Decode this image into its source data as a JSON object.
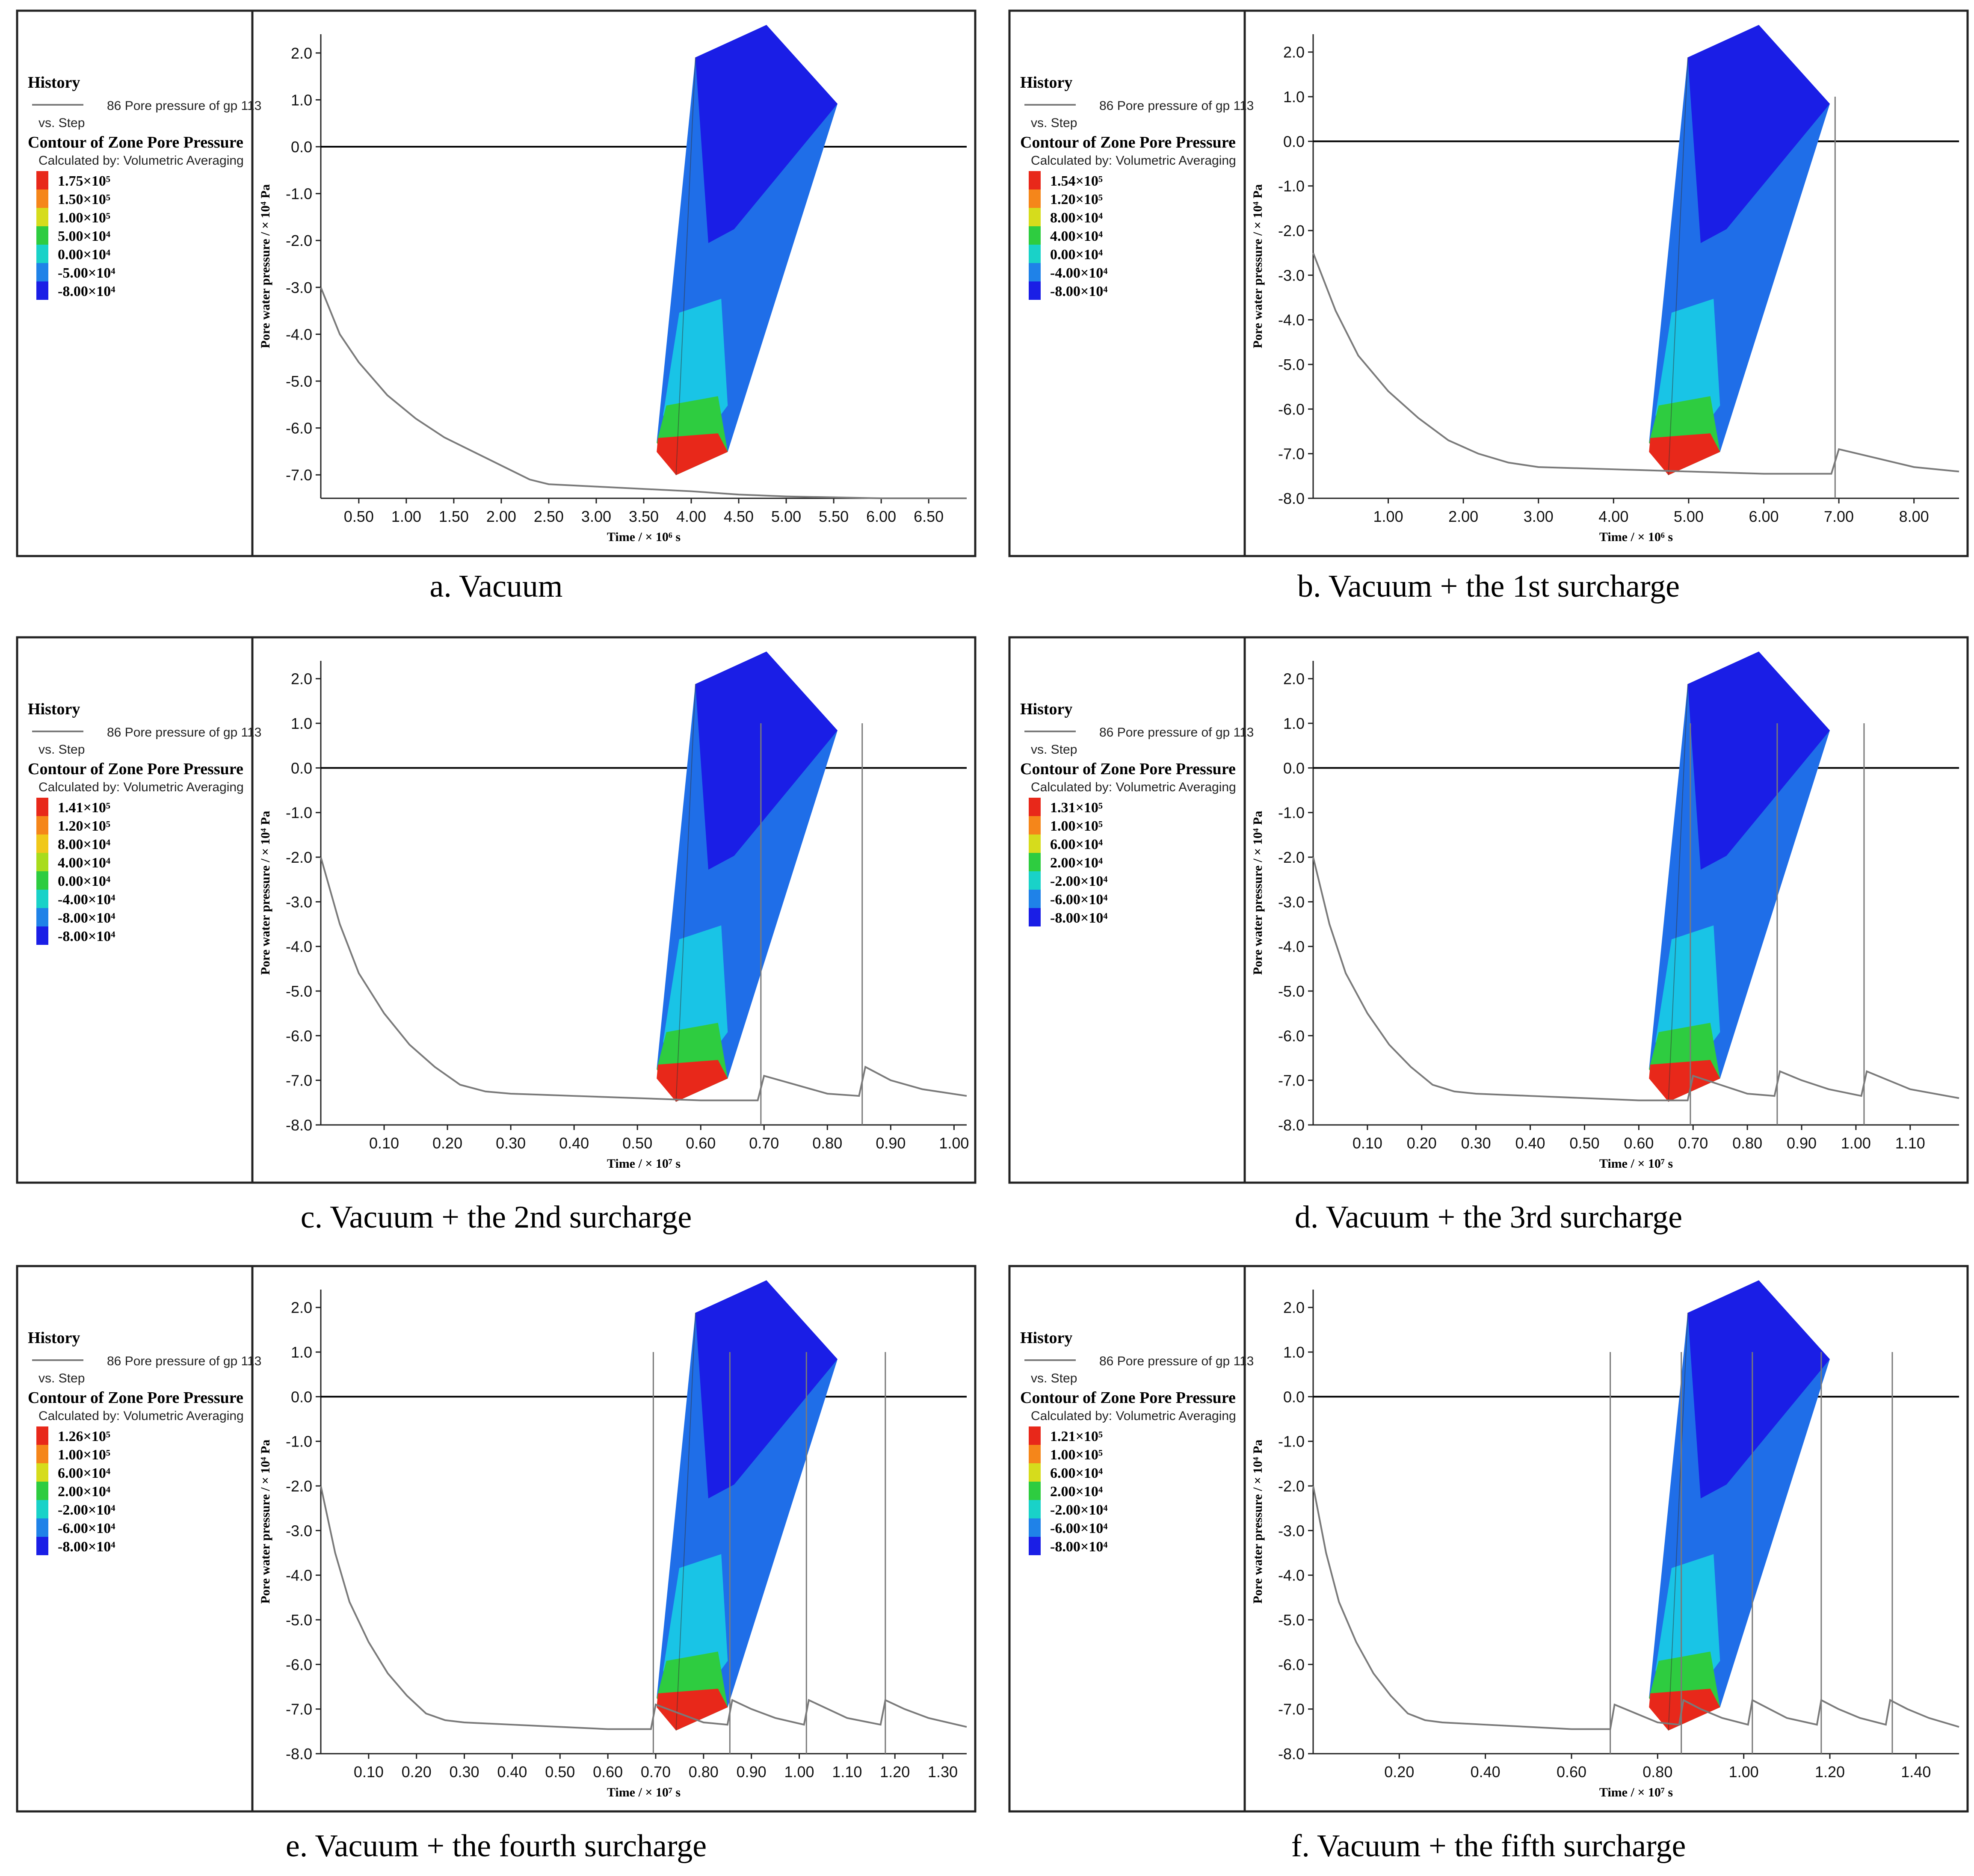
{
  "legend": {
    "history": "History",
    "series_name": "86 Pore pressure of gp 113",
    "vs_step": "vs. Step",
    "contour_title": "Contour of Zone Pore Pressure",
    "calculated_by": "Calculated by: Volumetric Averaging"
  },
  "axis_common": {
    "ylabel": "Pore water pressure / × 10⁴ Pa",
    "ylim": [
      -8.0,
      2.0
    ]
  },
  "colors": {
    "line": "#7a7a7a",
    "zero_line": "#000000",
    "model_top": "#1a1ee6",
    "model_mid": "#1f6ee8",
    "model_cyan": "#19c4e6",
    "model_green": "#2ecc40",
    "model_red": "#e8281a"
  },
  "chart_data": [
    {
      "id": "a",
      "type": "line",
      "caption": "a. Vacuum",
      "xlabel": "Time / × 10⁶ s",
      "xlim": [
        0.1,
        6.9
      ],
      "ylim": [
        -7.5,
        2.4
      ],
      "x_ticks": [
        "0.50",
        "1.00",
        "1.50",
        "2.00",
        "2.50",
        "3.00",
        "3.50",
        "4.00",
        "4.50",
        "5.00",
        "5.50",
        "6.00",
        "6.50"
      ],
      "x_tick_values": [
        0.5,
        1.0,
        1.5,
        2.0,
        2.5,
        3.0,
        3.5,
        4.0,
        4.5,
        5.0,
        5.5,
        6.0,
        6.5
      ],
      "y_ticks": [
        "2.0",
        "1.0",
        "0.0",
        "-1.0",
        "-2.0",
        "-3.0",
        "-4.0",
        "-5.0",
        "-6.0",
        "-7.0"
      ],
      "y_tick_values": [
        2,
        1,
        0,
        -1,
        -2,
        -3,
        -4,
        -5,
        -6,
        -7
      ],
      "contour_labels": [
        "1.75×10⁵",
        "1.50×10⁵",
        "1.00×10⁵",
        "5.00×10⁴",
        "0.00×10⁴",
        "-5.00×10⁴",
        "-8.00×10⁴"
      ],
      "contour_colors": [
        "#e8281a",
        "#f5861a",
        "#d6dc1c",
        "#2ecc40",
        "#19d2c8",
        "#1f82e8",
        "#1a1ee6"
      ],
      "series": [
        {
          "name": "Pore pressure",
          "x": [
            0.1,
            0.3,
            0.5,
            0.8,
            1.1,
            1.4,
            1.7,
            2.0,
            2.2,
            2.3,
            2.5,
            3.0,
            3.5,
            4.0,
            4.5,
            5.0,
            5.5,
            6.0,
            6.5,
            6.9
          ],
          "y": [
            -3.0,
            -4.0,
            -4.6,
            -5.3,
            -5.8,
            -6.2,
            -6.5,
            -6.8,
            -7.0,
            -7.1,
            -7.2,
            -7.25,
            -7.3,
            -7.35,
            -7.42,
            -7.46,
            -7.48,
            -7.5,
            -7.5,
            -7.5
          ]
        }
      ],
      "spike_x": []
    },
    {
      "id": "b",
      "type": "line",
      "caption": "b. Vacuum + the 1st surcharge",
      "xlabel": "Time / × 10⁶ s",
      "xlim": [
        0.0,
        8.6
      ],
      "ylim": [
        -8.0,
        2.4
      ],
      "x_ticks": [
        "1.00",
        "2.00",
        "3.00",
        "4.00",
        "5.00",
        "6.00",
        "7.00",
        "8.00"
      ],
      "x_tick_values": [
        1,
        2,
        3,
        4,
        5,
        6,
        7,
        8
      ],
      "y_ticks": [
        "2.0",
        "1.0",
        "0.0",
        "-1.0",
        "-2.0",
        "-3.0",
        "-4.0",
        "-5.0",
        "-6.0",
        "-7.0",
        "-8.0"
      ],
      "y_tick_values": [
        2,
        1,
        0,
        -1,
        -2,
        -3,
        -4,
        -5,
        -6,
        -7,
        -8
      ],
      "contour_labels": [
        "1.54×10⁵",
        "1.20×10⁵",
        "8.00×10⁴",
        "4.00×10⁴",
        "0.00×10⁴",
        "-4.00×10⁴",
        "-8.00×10⁴"
      ],
      "contour_colors": [
        "#e8281a",
        "#f5861a",
        "#d6dc1c",
        "#2ecc40",
        "#19d2c8",
        "#1f82e8",
        "#1a1ee6"
      ],
      "series": [
        {
          "name": "Pore pressure",
          "x": [
            0.0,
            0.3,
            0.6,
            1.0,
            1.4,
            1.8,
            2.2,
            2.6,
            3.0,
            4.0,
            5.0,
            6.0,
            6.9,
            7.0,
            7.5,
            8.0,
            8.6
          ],
          "y": [
            -2.5,
            -3.8,
            -4.8,
            -5.6,
            -6.2,
            -6.7,
            -7.0,
            -7.2,
            -7.3,
            -7.35,
            -7.4,
            -7.45,
            -7.45,
            -6.9,
            -7.1,
            -7.3,
            -7.4
          ]
        }
      ],
      "spike_x": [
        6.95
      ]
    },
    {
      "id": "c",
      "type": "line",
      "caption": "c. Vacuum + the 2nd surcharge",
      "xlabel": "Time / × 10⁷ s",
      "xlim": [
        0.0,
        1.02
      ],
      "ylim": [
        -8.0,
        2.4
      ],
      "x_ticks": [
        "0.10",
        "0.20",
        "0.30",
        "0.40",
        "0.50",
        "0.60",
        "0.70",
        "0.80",
        "0.90",
        "1.00"
      ],
      "x_tick_values": [
        0.1,
        0.2,
        0.3,
        0.4,
        0.5,
        0.6,
        0.7,
        0.8,
        0.9,
        1.0
      ],
      "y_ticks": [
        "2.0",
        "1.0",
        "0.0",
        "-1.0",
        "-2.0",
        "-3.0",
        "-4.0",
        "-5.0",
        "-6.0",
        "-7.0",
        "-8.0"
      ],
      "y_tick_values": [
        2,
        1,
        0,
        -1,
        -2,
        -3,
        -4,
        -5,
        -6,
        -7,
        -8
      ],
      "contour_labels": [
        "1.41×10⁵",
        "1.20×10⁵",
        "8.00×10⁴",
        "4.00×10⁴",
        "0.00×10⁴",
        "-4.00×10⁴",
        "-8.00×10⁴",
        "-8.00×10⁴"
      ],
      "contour_colors": [
        "#e8281a",
        "#f5861a",
        "#f0c81a",
        "#a8dc1c",
        "#2ecc40",
        "#19d2c8",
        "#1f82e8",
        "#1a1ee6"
      ],
      "series": [
        {
          "name": "Pore pressure",
          "x": [
            0.0,
            0.03,
            0.06,
            0.1,
            0.14,
            0.18,
            0.22,
            0.26,
            0.3,
            0.4,
            0.5,
            0.6,
            0.69,
            0.7,
            0.75,
            0.8,
            0.85,
            0.86,
            0.9,
            0.95,
            1.02
          ],
          "y": [
            -2.0,
            -3.5,
            -4.6,
            -5.5,
            -6.2,
            -6.7,
            -7.1,
            -7.25,
            -7.3,
            -7.35,
            -7.4,
            -7.45,
            -7.45,
            -6.9,
            -7.1,
            -7.3,
            -7.35,
            -6.7,
            -7.0,
            -7.2,
            -7.35
          ]
        }
      ],
      "spike_x": [
        0.695,
        0.855
      ]
    },
    {
      "id": "d",
      "type": "line",
      "caption": "d. Vacuum + the 3rd surcharge",
      "xlabel": "Time / × 10⁷ s",
      "xlim": [
        0.0,
        1.19
      ],
      "ylim": [
        -8.0,
        2.4
      ],
      "x_ticks": [
        "0.10",
        "0.20",
        "0.30",
        "0.40",
        "0.50",
        "0.60",
        "0.70",
        "0.80",
        "0.90",
        "1.00",
        "1.10"
      ],
      "x_tick_values": [
        0.1,
        0.2,
        0.3,
        0.4,
        0.5,
        0.6,
        0.7,
        0.8,
        0.9,
        1.0,
        1.1
      ],
      "y_ticks": [
        "2.0",
        "1.0",
        "0.0",
        "-1.0",
        "-2.0",
        "-3.0",
        "-4.0",
        "-5.0",
        "-6.0",
        "-7.0",
        "-8.0"
      ],
      "y_tick_values": [
        2,
        1,
        0,
        -1,
        -2,
        -3,
        -4,
        -5,
        -6,
        -7,
        -8
      ],
      "contour_labels": [
        "1.31×10⁵",
        "1.00×10⁵",
        "6.00×10⁴",
        "2.00×10⁴",
        "-2.00×10⁴",
        "-6.00×10⁴",
        "-8.00×10⁴"
      ],
      "contour_colors": [
        "#e8281a",
        "#f5861a",
        "#d6dc1c",
        "#2ecc40",
        "#19d2c8",
        "#1f82e8",
        "#1a1ee6"
      ],
      "series": [
        {
          "name": "Pore pressure",
          "x": [
            0.0,
            0.03,
            0.06,
            0.1,
            0.14,
            0.18,
            0.22,
            0.26,
            0.3,
            0.4,
            0.5,
            0.6,
            0.69,
            0.7,
            0.75,
            0.8,
            0.85,
            0.86,
            0.9,
            0.95,
            1.01,
            1.02,
            1.06,
            1.1,
            1.19
          ],
          "y": [
            -2.0,
            -3.5,
            -4.6,
            -5.5,
            -6.2,
            -6.7,
            -7.1,
            -7.25,
            -7.3,
            -7.35,
            -7.4,
            -7.45,
            -7.45,
            -6.9,
            -7.1,
            -7.3,
            -7.35,
            -6.8,
            -7.0,
            -7.2,
            -7.35,
            -6.8,
            -7.0,
            -7.2,
            -7.4
          ]
        }
      ],
      "spike_x": [
        0.695,
        0.855,
        1.015
      ]
    },
    {
      "id": "e",
      "type": "line",
      "caption": "e. Vacuum + the fourth surcharge",
      "xlabel": "Time / × 10⁷ s",
      "xlim": [
        0.0,
        1.35
      ],
      "ylim": [
        -8.0,
        2.4
      ],
      "x_ticks": [
        "0.10",
        "0.20",
        "0.30",
        "0.40",
        "0.50",
        "0.60",
        "0.70",
        "0.80",
        "0.90",
        "1.00",
        "1.10",
        "1.20",
        "1.30"
      ],
      "x_tick_values": [
        0.1,
        0.2,
        0.3,
        0.4,
        0.5,
        0.6,
        0.7,
        0.8,
        0.9,
        1.0,
        1.1,
        1.2,
        1.3
      ],
      "y_ticks": [
        "2.0",
        "1.0",
        "0.0",
        "-1.0",
        "-2.0",
        "-3.0",
        "-4.0",
        "-5.0",
        "-6.0",
        "-7.0",
        "-8.0"
      ],
      "y_tick_values": [
        2,
        1,
        0,
        -1,
        -2,
        -3,
        -4,
        -5,
        -6,
        -7,
        -8
      ],
      "contour_labels": [
        "1.26×10⁵",
        "1.00×10⁵",
        "6.00×10⁴",
        "2.00×10⁴",
        "-2.00×10⁴",
        "-6.00×10⁴",
        "-8.00×10⁴"
      ],
      "contour_colors": [
        "#e8281a",
        "#f5861a",
        "#d6dc1c",
        "#2ecc40",
        "#19d2c8",
        "#1f82e8",
        "#1a1ee6"
      ],
      "series": [
        {
          "name": "Pore pressure",
          "x": [
            0.0,
            0.03,
            0.06,
            0.1,
            0.14,
            0.18,
            0.22,
            0.26,
            0.3,
            0.4,
            0.5,
            0.6,
            0.69,
            0.7,
            0.75,
            0.8,
            0.85,
            0.86,
            0.9,
            0.95,
            1.01,
            1.02,
            1.06,
            1.1,
            1.17,
            1.18,
            1.22,
            1.27,
            1.35
          ],
          "y": [
            -2.0,
            -3.5,
            -4.6,
            -5.5,
            -6.2,
            -6.7,
            -7.1,
            -7.25,
            -7.3,
            -7.35,
            -7.4,
            -7.45,
            -7.45,
            -6.9,
            -7.1,
            -7.3,
            -7.35,
            -6.8,
            -7.0,
            -7.2,
            -7.35,
            -6.8,
            -7.0,
            -7.2,
            -7.35,
            -6.8,
            -7.0,
            -7.2,
            -7.4
          ]
        }
      ],
      "spike_x": [
        0.695,
        0.855,
        1.015,
        1.18
      ]
    },
    {
      "id": "f",
      "type": "line",
      "caption": "f. Vacuum + the fifth surcharge",
      "xlabel": "Time / × 10⁷ s",
      "xlim": [
        0.0,
        1.5
      ],
      "ylim": [
        -8.0,
        2.4
      ],
      "x_ticks": [
        "0.20",
        "0.40",
        "0.60",
        "0.80",
        "1.00",
        "1.20",
        "1.40"
      ],
      "x_tick_values": [
        0.2,
        0.4,
        0.6,
        0.8,
        1.0,
        1.2,
        1.4
      ],
      "y_ticks": [
        "2.0",
        "1.0",
        "0.0",
        "-1.0",
        "-2.0",
        "-3.0",
        "-4.0",
        "-5.0",
        "-6.0",
        "-7.0",
        "-8.0"
      ],
      "y_tick_values": [
        2,
        1,
        0,
        -1,
        -2,
        -3,
        -4,
        -5,
        -6,
        -7,
        -8
      ],
      "contour_labels": [
        "1.21×10⁵",
        "1.00×10⁵",
        "6.00×10⁴",
        "2.00×10⁴",
        "-2.00×10⁴",
        "-6.00×10⁴",
        "-8.00×10⁴"
      ],
      "contour_colors": [
        "#e8281a",
        "#f5861a",
        "#d6dc1c",
        "#2ecc40",
        "#19d2c8",
        "#1f82e8",
        "#1a1ee6"
      ],
      "series": [
        {
          "name": "Pore pressure",
          "x": [
            0.0,
            0.03,
            0.06,
            0.1,
            0.14,
            0.18,
            0.22,
            0.26,
            0.3,
            0.4,
            0.5,
            0.6,
            0.69,
            0.7,
            0.75,
            0.8,
            0.85,
            0.86,
            0.9,
            0.95,
            1.01,
            1.02,
            1.06,
            1.1,
            1.17,
            1.18,
            1.22,
            1.27,
            1.33,
            1.34,
            1.38,
            1.43,
            1.5
          ],
          "y": [
            -2.0,
            -3.5,
            -4.6,
            -5.5,
            -6.2,
            -6.7,
            -7.1,
            -7.25,
            -7.3,
            -7.35,
            -7.4,
            -7.45,
            -7.45,
            -6.9,
            -7.1,
            -7.3,
            -7.35,
            -6.8,
            -7.0,
            -7.2,
            -7.35,
            -6.8,
            -7.0,
            -7.2,
            -7.35,
            -6.8,
            -7.0,
            -7.2,
            -7.35,
            -6.8,
            -7.0,
            -7.2,
            -7.4
          ]
        }
      ],
      "spike_x": [
        0.69,
        0.855,
        1.02,
        1.18,
        1.345
      ]
    }
  ]
}
